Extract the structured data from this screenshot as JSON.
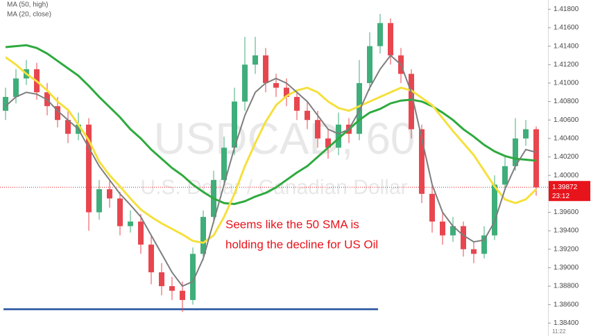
{
  "chart_data": {
    "type": "candlestick",
    "watermark": "USDCAD, 60",
    "watermark_subtitle": "U.S. Dollar / Canadian Dollar",
    "legend": [
      "MA (50, high)",
      "MA (20, close)"
    ],
    "annotation": [
      "Seems like the 50 SMA is",
      "holding the decline for US Oil"
    ],
    "annotation_color": "#e8141c",
    "up_color": "#3fae7a",
    "down_color": "#e8464f",
    "ylim": [
      1.3826,
      1.419
    ],
    "yticks": [
      {
        "value": 1.418,
        "label": "1.41800"
      },
      {
        "value": 1.416,
        "label": "1.41600"
      },
      {
        "value": 1.414,
        "label": "1.41400"
      },
      {
        "value": 1.412,
        "label": "1.41200"
      },
      {
        "value": 1.41,
        "label": "1.41000"
      },
      {
        "value": 1.408,
        "label": "1.40800"
      },
      {
        "value": 1.406,
        "label": "1.40600"
      },
      {
        "value": 1.404,
        "label": "1.40400"
      },
      {
        "value": 1.402,
        "label": "1.40200"
      },
      {
        "value": 1.4,
        "label": "1.40000"
      },
      {
        "value": 1.396,
        "label": "1.39600"
      },
      {
        "value": 1.394,
        "label": "1.39400"
      },
      {
        "value": 1.392,
        "label": "1.39200"
      },
      {
        "value": 1.39,
        "label": "1.39000"
      },
      {
        "value": 1.388,
        "label": "1.38800"
      },
      {
        "value": 1.386,
        "label": "1.38600"
      },
      {
        "value": 1.384,
        "label": "1.38400"
      }
    ],
    "last_price": {
      "value": 1.39872,
      "label": "1.39872",
      "countdown": "23:12",
      "color": "#e8141c"
    },
    "clock": "11:22",
    "support_line": {
      "value": 1.3855,
      "color": "#1f4e9c"
    },
    "ohlc": {
      "open": [
        1.407,
        1.4085,
        1.4105,
        1.4115,
        1.409,
        1.4075,
        1.406,
        1.4045,
        1.4055,
        1.396,
        1.3985,
        1.3975,
        1.3945,
        1.395,
        1.3925,
        1.3895,
        1.388,
        1.3875,
        1.3865,
        1.3915,
        1.3955,
        1.3995,
        1.403,
        1.408,
        1.412,
        1.413,
        1.41,
        1.4095,
        1.4085,
        1.407,
        1.406,
        1.404,
        1.403,
        1.4055,
        1.4045,
        1.41,
        1.414,
        1.4165,
        1.413,
        1.411,
        1.405,
        1.398,
        1.395,
        1.3935,
        1.3945,
        1.392,
        1.3915,
        1.3935,
        1.399,
        1.401,
        1.404,
        1.405
      ],
      "high": [
        1.4095,
        1.4115,
        1.4125,
        1.4122,
        1.41,
        1.4085,
        1.407,
        1.4068,
        1.4062,
        1.3995,
        1.3995,
        1.3982,
        1.3962,
        1.3958,
        1.3935,
        1.3905,
        1.389,
        1.3885,
        1.3922,
        1.3962,
        1.4005,
        1.4042,
        1.4095,
        1.415,
        1.415,
        1.4138,
        1.411,
        1.4105,
        1.4092,
        1.408,
        1.407,
        1.405,
        1.4068,
        1.4062,
        1.4125,
        1.4155,
        1.4175,
        1.417,
        1.4138,
        1.4115,
        1.4055,
        1.399,
        1.396,
        1.3955,
        1.395,
        1.3928,
        1.3945,
        1.4,
        1.4022,
        1.4062,
        1.406,
        1.4053
      ],
      "low": [
        1.406,
        1.4078,
        1.4098,
        1.4082,
        1.4065,
        1.4052,
        1.4035,
        1.4038,
        1.394,
        1.3952,
        1.3965,
        1.3935,
        1.3938,
        1.3915,
        1.3882,
        1.387,
        1.3865,
        1.3852,
        1.386,
        1.3908,
        1.3948,
        1.3988,
        1.4022,
        1.407,
        1.411,
        1.409,
        1.4085,
        1.4075,
        1.406,
        1.405,
        1.403,
        1.4018,
        1.4022,
        1.4035,
        1.4038,
        1.4092,
        1.4132,
        1.412,
        1.41,
        1.404,
        1.397,
        1.3938,
        1.3925,
        1.3928,
        1.3912,
        1.3905,
        1.391,
        1.393,
        1.3985,
        1.4005,
        1.4032,
        1.3978
      ],
      "close": [
        1.4085,
        1.4105,
        1.4115,
        1.409,
        1.4075,
        1.406,
        1.4045,
        1.4055,
        1.396,
        1.3985,
        1.3975,
        1.3945,
        1.395,
        1.3925,
        1.3895,
        1.388,
        1.3875,
        1.3865,
        1.3915,
        1.3955,
        1.3995,
        1.403,
        1.408,
        1.412,
        1.413,
        1.41,
        1.4095,
        1.4085,
        1.407,
        1.406,
        1.404,
        1.403,
        1.4055,
        1.4045,
        1.41,
        1.414,
        1.4165,
        1.413,
        1.411,
        1.405,
        1.398,
        1.395,
        1.3935,
        1.3945,
        1.392,
        1.3915,
        1.3935,
        1.399,
        1.401,
        1.404,
        1.405,
        1.3987
      ]
    },
    "series": [
      {
        "color": "#2eaa3e",
        "values": [
          1.4139,
          1.414,
          1.4141,
          1.4138,
          1.4132,
          1.4124,
          1.4116,
          1.4108,
          1.4097,
          1.4085,
          1.4074,
          1.4063,
          1.405,
          1.404,
          1.4028,
          1.4018,
          1.4008,
          1.4,
          1.399,
          1.3982,
          1.3975,
          1.397,
          1.3969,
          1.3972,
          1.3977,
          1.3981,
          1.3987,
          1.3995,
          1.4003,
          1.401,
          1.402,
          1.403,
          1.404,
          1.405,
          1.406,
          1.4068,
          1.4072,
          1.4078,
          1.4081,
          1.4082,
          1.408,
          1.4075,
          1.4068,
          1.406,
          1.405,
          1.4042,
          1.4033,
          1.4026,
          1.4021,
          1.4018,
          1.4017,
          1.4016
        ]
      },
      {
        "color": "#f5e03c",
        "values": [
          1.4128,
          1.412,
          1.411,
          1.4102,
          1.4092,
          1.408,
          1.4071,
          1.4055,
          1.4038,
          1.4015,
          1.4,
          1.3988,
          1.3975,
          1.3963,
          1.3955,
          1.3948,
          1.3942,
          1.3936,
          1.3929,
          1.3927,
          1.3935,
          1.3955,
          1.398,
          1.401,
          1.4035,
          1.4058,
          1.4076,
          1.4086,
          1.4092,
          1.4095,
          1.409,
          1.408,
          1.4073,
          1.407,
          1.4075,
          1.408,
          1.4085,
          1.409,
          1.4095,
          1.4092,
          1.4084,
          1.4076,
          1.4062,
          1.4048,
          1.4035,
          1.4022,
          1.4005,
          1.3988,
          1.3974,
          1.397,
          1.3974,
          1.3985
        ]
      },
      {
        "color": "#7d7d7d",
        "values": [
          1.4075,
          1.4085,
          1.409,
          1.4088,
          1.4082,
          1.407,
          1.406,
          1.405,
          1.403,
          1.401,
          1.3995,
          1.398,
          1.3968,
          1.3955,
          1.3935,
          1.3915,
          1.3895,
          1.388,
          1.3885,
          1.391,
          1.395,
          1.399,
          1.403,
          1.4065,
          1.409,
          1.41,
          1.4105,
          1.41,
          1.409,
          1.408,
          1.4065,
          1.405,
          1.4045,
          1.405,
          1.407,
          1.4095,
          1.4115,
          1.413,
          1.412,
          1.409,
          1.404,
          1.399,
          1.396,
          1.3945,
          1.3935,
          1.3928,
          1.393,
          1.395,
          1.3985,
          1.401,
          1.4028,
          1.4025
        ]
      }
    ]
  }
}
